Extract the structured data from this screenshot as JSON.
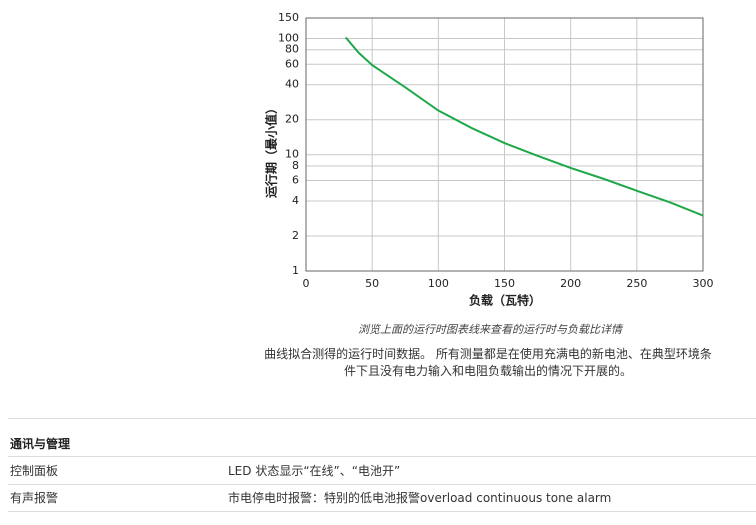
{
  "chart_data": {
    "type": "line",
    "xlabel": "负载（瓦特）",
    "ylabel": "运行期（最小值）",
    "x": [
      30,
      40,
      50,
      75,
      100,
      125,
      150,
      175,
      200,
      225,
      250,
      275,
      300
    ],
    "values": [
      102,
      75,
      59,
      38,
      24,
      17,
      12.6,
      9.8,
      7.7,
      6.2,
      4.9,
      3.9,
      3.0
    ],
    "color": "#1ea84a",
    "xlim": [
      0,
      300
    ],
    "xticks": [
      0,
      50,
      100,
      150,
      200,
      250,
      300
    ],
    "ylim": [
      1,
      150
    ],
    "yticks": [
      1,
      2,
      4,
      6,
      8,
      10,
      20,
      40,
      60,
      80,
      100,
      150
    ],
    "ylog": true,
    "grid": true
  },
  "caption": "浏览上面的运行时图表线来查看的运行时与负载比详情",
  "description": "曲线拟合测得的运行时间数据。 所有测量都是在使用充满电的新电池、在典型环境条件下且没有电力输入和电阻负载输出的情况下开展的。",
  "section": {
    "title": "通讯与管理",
    "rows": [
      [
        "控制面板",
        "LED 状态显示“在线”、“电池开”"
      ],
      [
        "有声报警",
        "市电停电时报警：特别的低电池报警overload continuous tone alarm"
      ]
    ]
  }
}
